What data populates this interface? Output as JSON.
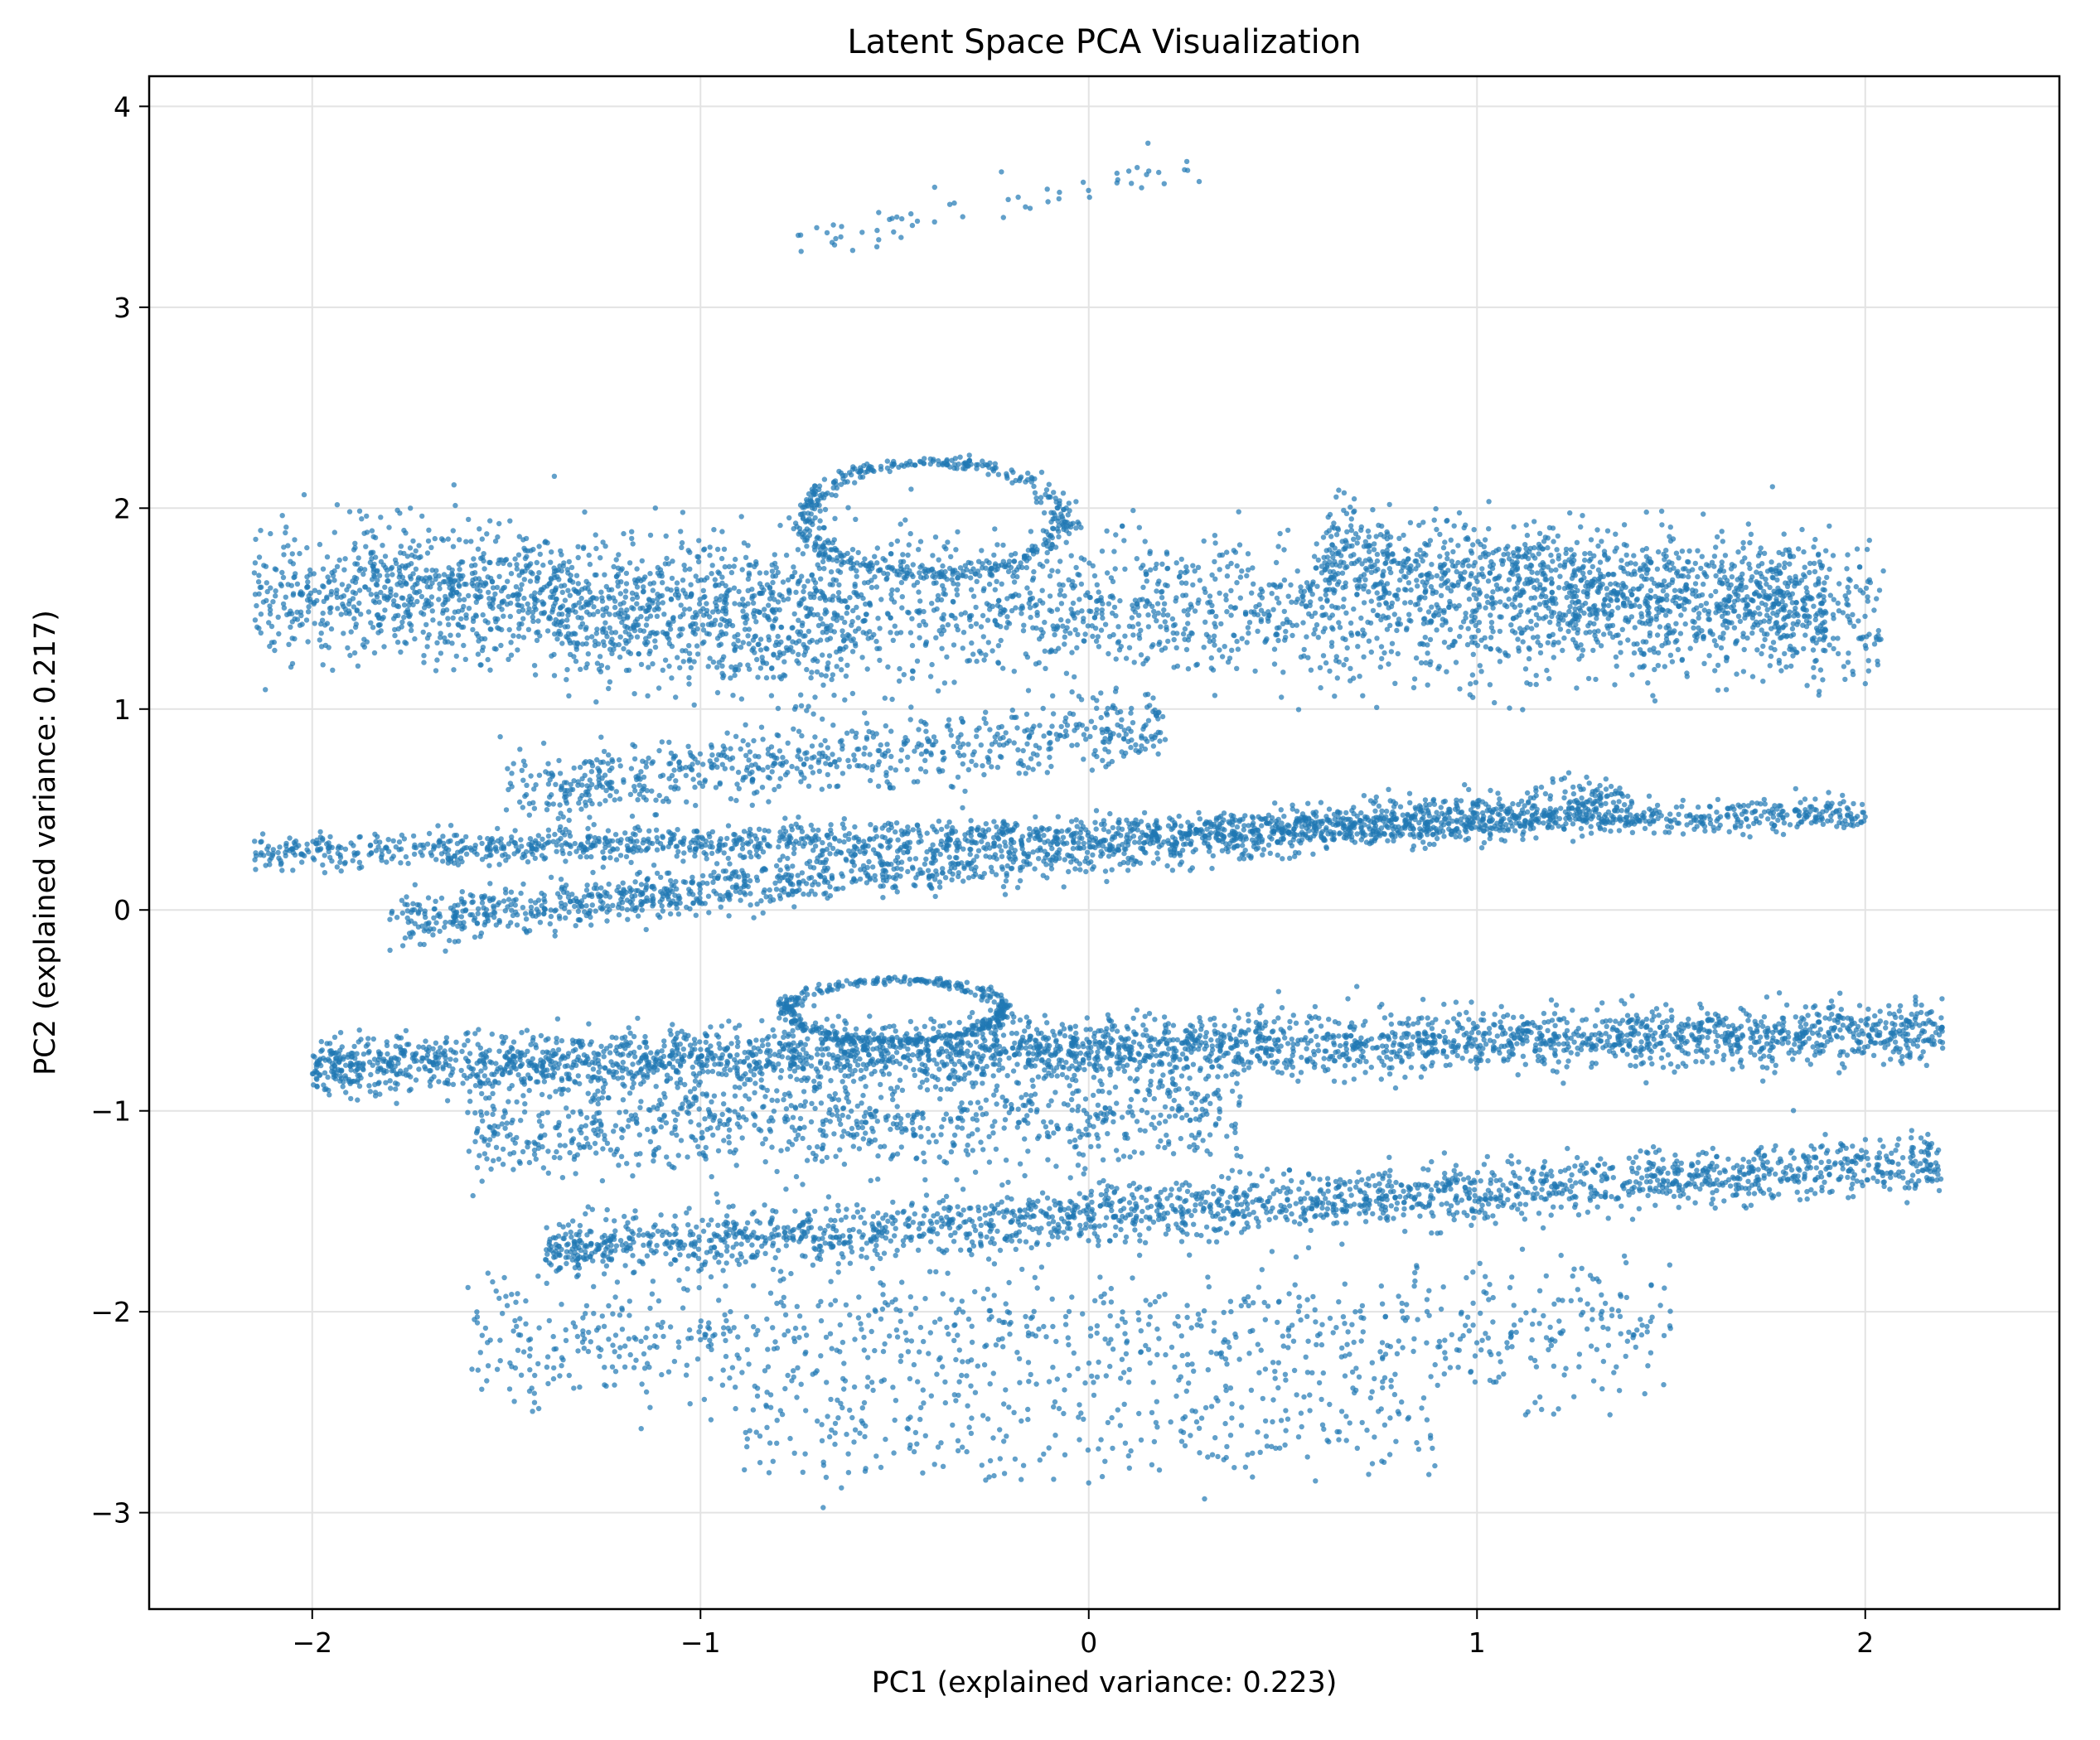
{
  "chart_data": {
    "type": "scatter",
    "title": "Latent Space PCA Visualization",
    "xlabel": "PC1 (explained variance: 0.223)",
    "ylabel": "PC2 (explained variance: 0.217)",
    "xlim": [
      -2.42,
      2.5
    ],
    "ylim": [
      -3.48,
      4.15
    ],
    "xticks": [
      -2,
      -1,
      0,
      1,
      2
    ],
    "xtick_labels": [
      "−2",
      "−1",
      "0",
      "1",
      "2"
    ],
    "yticks": [
      -3,
      -2,
      -1,
      0,
      1,
      2,
      3,
      4
    ],
    "ytick_labels": [
      "−3",
      "−2",
      "−1",
      "0",
      "1",
      "2",
      "3",
      "4"
    ],
    "grid": true,
    "color": "#1f77b4",
    "marker_alpha": 0.7,
    "clusters": [
      {
        "x_range": [
          -2.15,
          2.05
        ],
        "y_center_start": 1.55,
        "y_center_end": 1.45,
        "y_spread": 0.35,
        "n": 2600
      },
      {
        "x_range": [
          0.6,
          1.9
        ],
        "y_center_start": 1.75,
        "y_center_end": 1.55,
        "y_spread": 0.25,
        "n": 900
      },
      {
        "x_range": [
          -1.9,
          -0.6
        ],
        "y_center_start": 1.7,
        "y_center_end": 1.3,
        "y_spread": 0.3,
        "n": 700
      },
      {
        "x_range": [
          -2.15,
          2.0
        ],
        "y_center_start": 0.28,
        "y_center_end": 0.48,
        "y_spread": 0.08,
        "n": 1600
      },
      {
        "x_range": [
          -1.8,
          1.4
        ],
        "y_center_start": -0.05,
        "y_center_end": 0.55,
        "y_spread": 0.12,
        "n": 1500
      },
      {
        "x_range": [
          -1.5,
          0.2
        ],
        "y_center_start": 0.6,
        "y_center_end": 0.9,
        "y_spread": 0.18,
        "n": 700
      },
      {
        "x_range": [
          -2.0,
          2.2
        ],
        "y_center_start": -0.78,
        "y_center_end": -0.6,
        "y_spread": 0.15,
        "n": 3000
      },
      {
        "x_range": [
          -1.6,
          0.4
        ],
        "y_center_start": -1.1,
        "y_center_end": -1.0,
        "y_spread": 0.25,
        "n": 900
      },
      {
        "x_range": [
          -1.4,
          2.2
        ],
        "y_center_start": -1.7,
        "y_center_end": -1.25,
        "y_spread": 0.14,
        "n": 2000
      },
      {
        "x_range": [
          -1.6,
          1.5
        ],
        "y_center_start": -2.15,
        "y_center_end": -2.1,
        "y_spread": 0.35,
        "n": 900
      },
      {
        "x_range": [
          -0.9,
          0.9
        ],
        "y_center_start": -2.6,
        "y_center_end": -2.6,
        "y_spread": 0.25,
        "n": 250
      },
      {
        "x_range": [
          -0.8,
          0.3
        ],
        "y_center_start": 3.3,
        "y_center_end": 3.7,
        "y_spread": 0.12,
        "n": 60
      }
    ],
    "loops": [
      {
        "cx": -0.4,
        "cy": 1.95,
        "rx": 0.33,
        "ry": 0.28,
        "n": 450
      },
      {
        "cx": -0.5,
        "cy": -0.5,
        "rx": 0.28,
        "ry": 0.15,
        "n": 400
      }
    ]
  }
}
